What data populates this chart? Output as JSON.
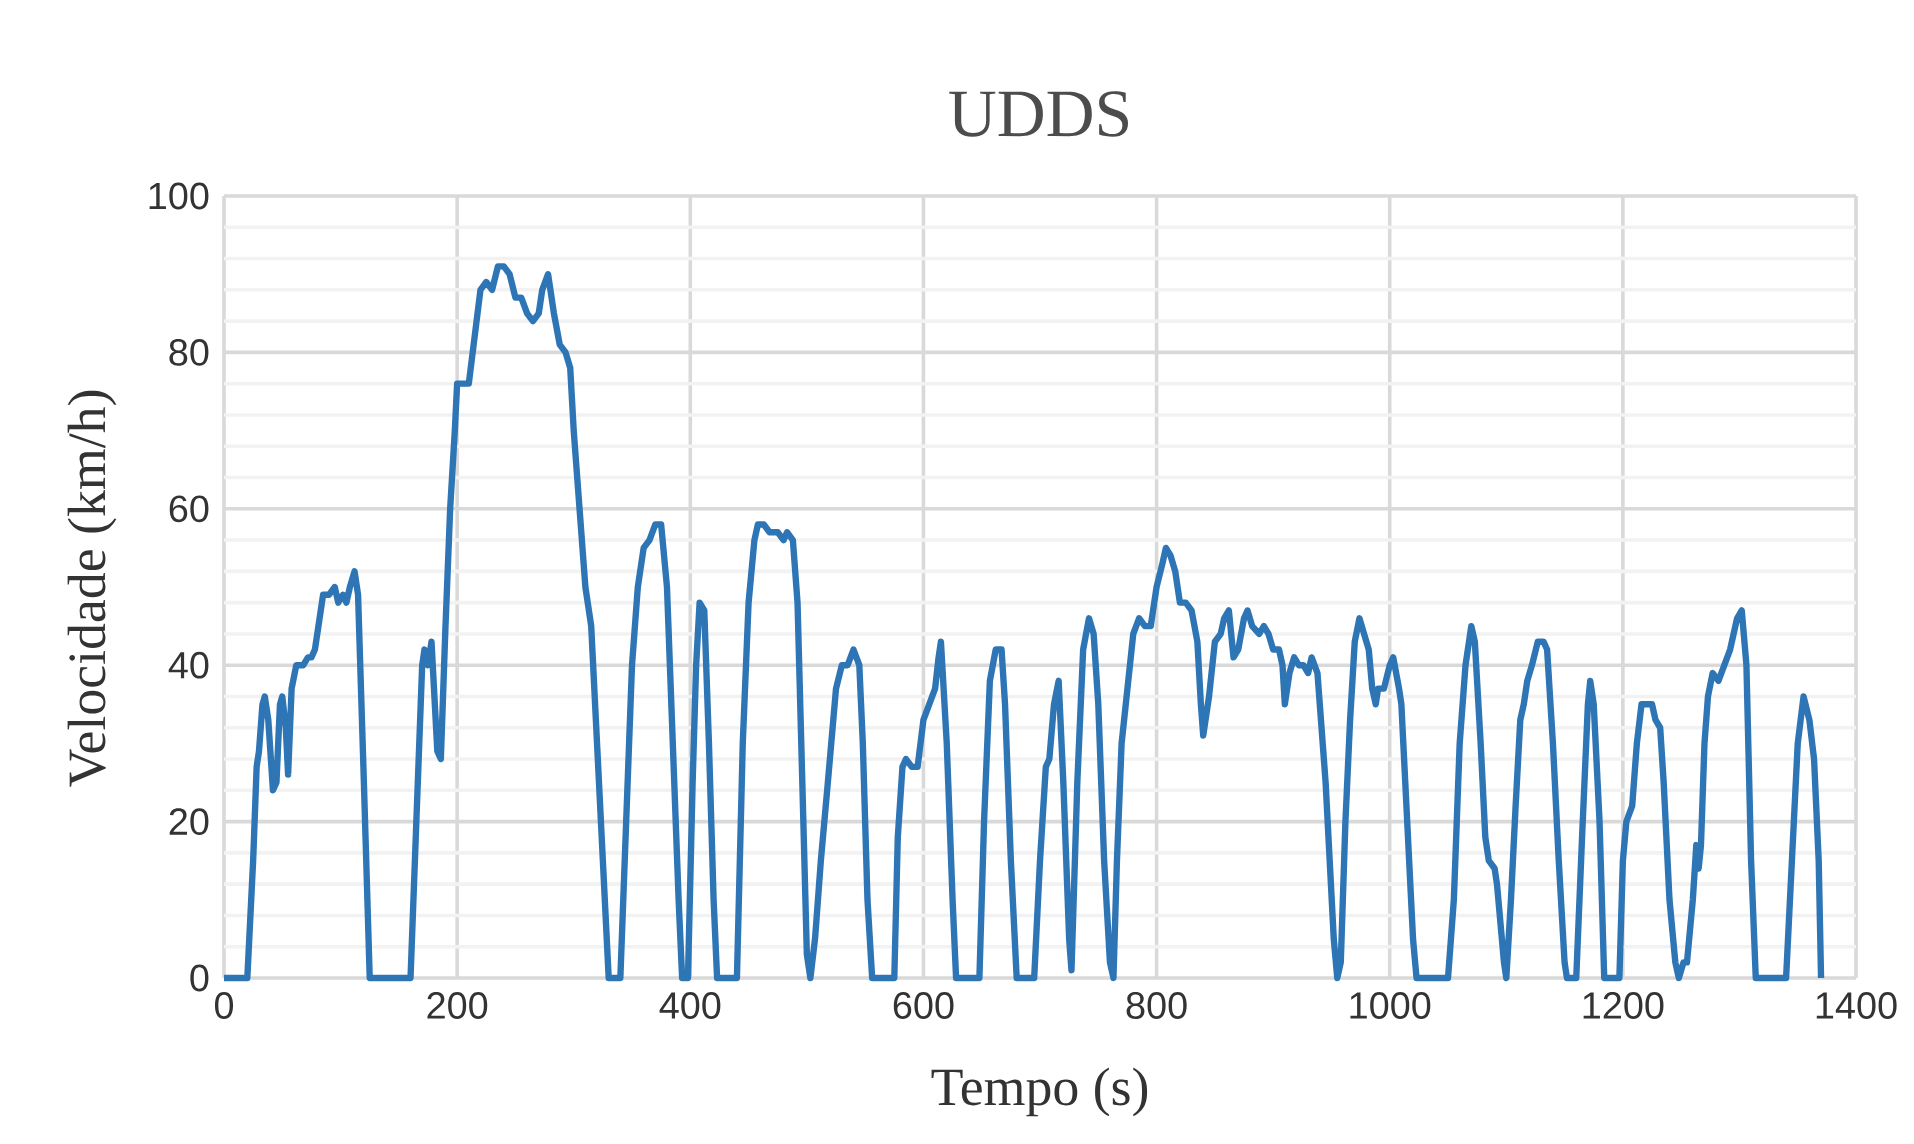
{
  "chart_data": {
    "type": "line",
    "title": "UDDS",
    "xlabel": "Tempo (s)",
    "ylabel": "Velocidade (km/h)",
    "xlim": [
      0,
      1400
    ],
    "ylim": [
      0,
      100
    ],
    "xticks": [
      0,
      200,
      400,
      600,
      800,
      1000,
      1200,
      1400
    ],
    "yticks": [
      0,
      20,
      40,
      60,
      80,
      100
    ],
    "grid": true,
    "series": [
      {
        "color": "#2e75b6",
        "x": [
          0,
          20,
          25,
          28,
          30,
          33,
          35,
          38,
          42,
          45,
          48,
          50,
          53,
          55,
          58,
          62,
          65,
          68,
          72,
          75,
          78,
          82,
          85,
          90,
          95,
          98,
          102,
          105,
          108,
          112,
          115,
          120,
          125,
          160,
          165,
          170,
          172,
          175,
          178,
          183,
          186,
          190,
          194,
          198,
          200,
          205,
          210,
          215,
          220,
          225,
          230,
          235,
          240,
          245,
          250,
          255,
          260,
          265,
          270,
          273,
          278,
          283,
          288,
          293,
          297,
          300,
          305,
          310,
          315,
          320,
          325,
          330,
          340,
          345,
          350,
          355,
          360,
          365,
          370,
          375,
          380,
          385,
          390,
          393,
          398,
          402,
          405,
          408,
          412,
          416,
          420,
          423,
          440,
          445,
          450,
          455,
          458,
          463,
          468,
          475,
          480,
          483,
          488,
          492,
          497,
          500,
          503,
          507,
          512,
          518,
          525,
          530,
          535,
          540,
          545,
          548,
          552,
          556,
          575,
          578,
          582,
          585,
          590,
          595,
          600,
          605,
          610,
          613,
          615,
          620,
          625,
          628,
          648,
          652,
          657,
          662,
          667,
          670,
          675,
          680,
          695,
          700,
          705,
          708,
          712,
          716,
          720,
          725,
          727,
          732,
          737,
          742,
          746,
          750,
          755,
          760,
          763,
          766,
          770,
          775,
          780,
          785,
          790,
          795,
          800,
          805,
          808,
          812,
          816,
          820,
          825,
          830,
          835,
          838,
          840,
          845,
          850,
          855,
          858,
          862,
          866,
          870,
          875,
          878,
          882,
          888,
          892,
          896,
          900,
          905,
          908,
          910,
          914,
          918,
          922,
          926,
          930,
          933,
          938,
          945,
          952,
          955,
          958,
          962,
          966,
          970,
          974,
          978,
          982,
          985,
          988,
          990,
          995,
          1000,
          1003,
          1008,
          1010,
          1015,
          1020,
          1023,
          1050,
          1055,
          1060,
          1065,
          1070,
          1073,
          1078,
          1082,
          1085,
          1090,
          1092,
          1098,
          1100,
          1104,
          1108,
          1112,
          1115,
          1118,
          1122,
          1127,
          1132,
          1135,
          1140,
          1145,
          1150,
          1152,
          1160,
          1165,
          1170,
          1172,
          1175,
          1180,
          1184,
          1197,
          1200,
          1203,
          1208,
          1212,
          1216,
          1220,
          1225,
          1228,
          1232,
          1235,
          1240,
          1245,
          1248,
          1252,
          1255,
          1260,
          1263,
          1265,
          1267,
          1270,
          1273,
          1277,
          1282,
          1287,
          1292,
          1298,
          1302,
          1306,
          1310,
          1314,
          1340,
          1345,
          1350,
          1355,
          1360,
          1364,
          1368,
          1370
        ],
        "values": [
          0,
          0,
          15,
          27,
          29,
          35,
          36,
          33,
          24,
          25,
          35,
          36,
          32,
          26,
          37,
          40,
          40,
          40,
          41,
          41,
          42,
          46,
          49,
          49,
          50,
          48,
          49,
          48,
          50,
          52,
          49,
          25,
          0,
          0,
          20,
          40,
          42,
          40,
          43,
          29,
          28,
          45,
          60,
          70,
          76,
          76,
          76,
          82,
          88,
          89,
          88,
          91,
          91,
          90,
          87,
          87,
          85,
          84,
          85,
          88,
          90,
          85,
          81,
          80,
          78,
          70,
          60,
          50,
          45,
          30,
          15,
          0,
          0,
          20,
          40,
          50,
          55,
          56,
          58,
          58,
          50,
          30,
          10,
          0,
          0,
          25,
          40,
          48,
          47,
          30,
          10,
          0,
          0,
          30,
          48,
          56,
          58,
          58,
          57,
          57,
          56,
          57,
          56,
          48,
          20,
          3,
          0,
          5,
          15,
          25,
          37,
          40,
          40,
          42,
          40,
          30,
          10,
          0,
          0,
          18,
          27,
          28,
          27,
          27,
          33,
          35,
          37,
          41,
          43,
          30,
          10,
          0,
          0,
          20,
          38,
          42,
          42,
          35,
          15,
          0,
          0,
          15,
          27,
          28,
          35,
          38,
          25,
          5,
          1,
          25,
          42,
          46,
          44,
          35,
          15,
          2,
          0,
          15,
          30,
          37,
          44,
          46,
          45,
          45,
          50,
          53,
          55,
          54,
          52,
          48,
          48,
          47,
          43,
          35,
          31,
          36,
          43,
          44,
          46,
          47,
          41,
          42,
          46,
          47,
          45,
          44,
          45,
          44,
          42,
          42,
          40,
          35,
          39,
          41,
          40,
          40,
          39,
          41,
          39,
          25,
          5,
          0,
          2,
          20,
          33,
          43,
          46,
          44,
          42,
          37,
          35,
          37,
          37,
          40,
          41,
          37,
          35,
          20,
          5,
          0,
          0,
          10,
          30,
          40,
          45,
          43,
          30,
          18,
          15,
          14,
          12,
          2,
          0,
          10,
          22,
          33,
          35,
          38,
          40,
          43,
          43,
          42,
          30,
          15,
          2,
          0,
          0,
          18,
          35,
          38,
          35,
          20,
          0,
          0,
          15,
          20,
          22,
          30,
          35,
          35,
          35,
          33,
          32,
          25,
          10,
          2,
          0,
          2,
          2,
          10,
          17,
          14,
          17,
          30,
          36,
          39,
          38,
          40,
          42,
          46,
          47,
          40,
          15,
          0,
          0,
          15,
          30,
          36,
          33,
          28,
          15,
          0
        ]
      }
    ]
  }
}
